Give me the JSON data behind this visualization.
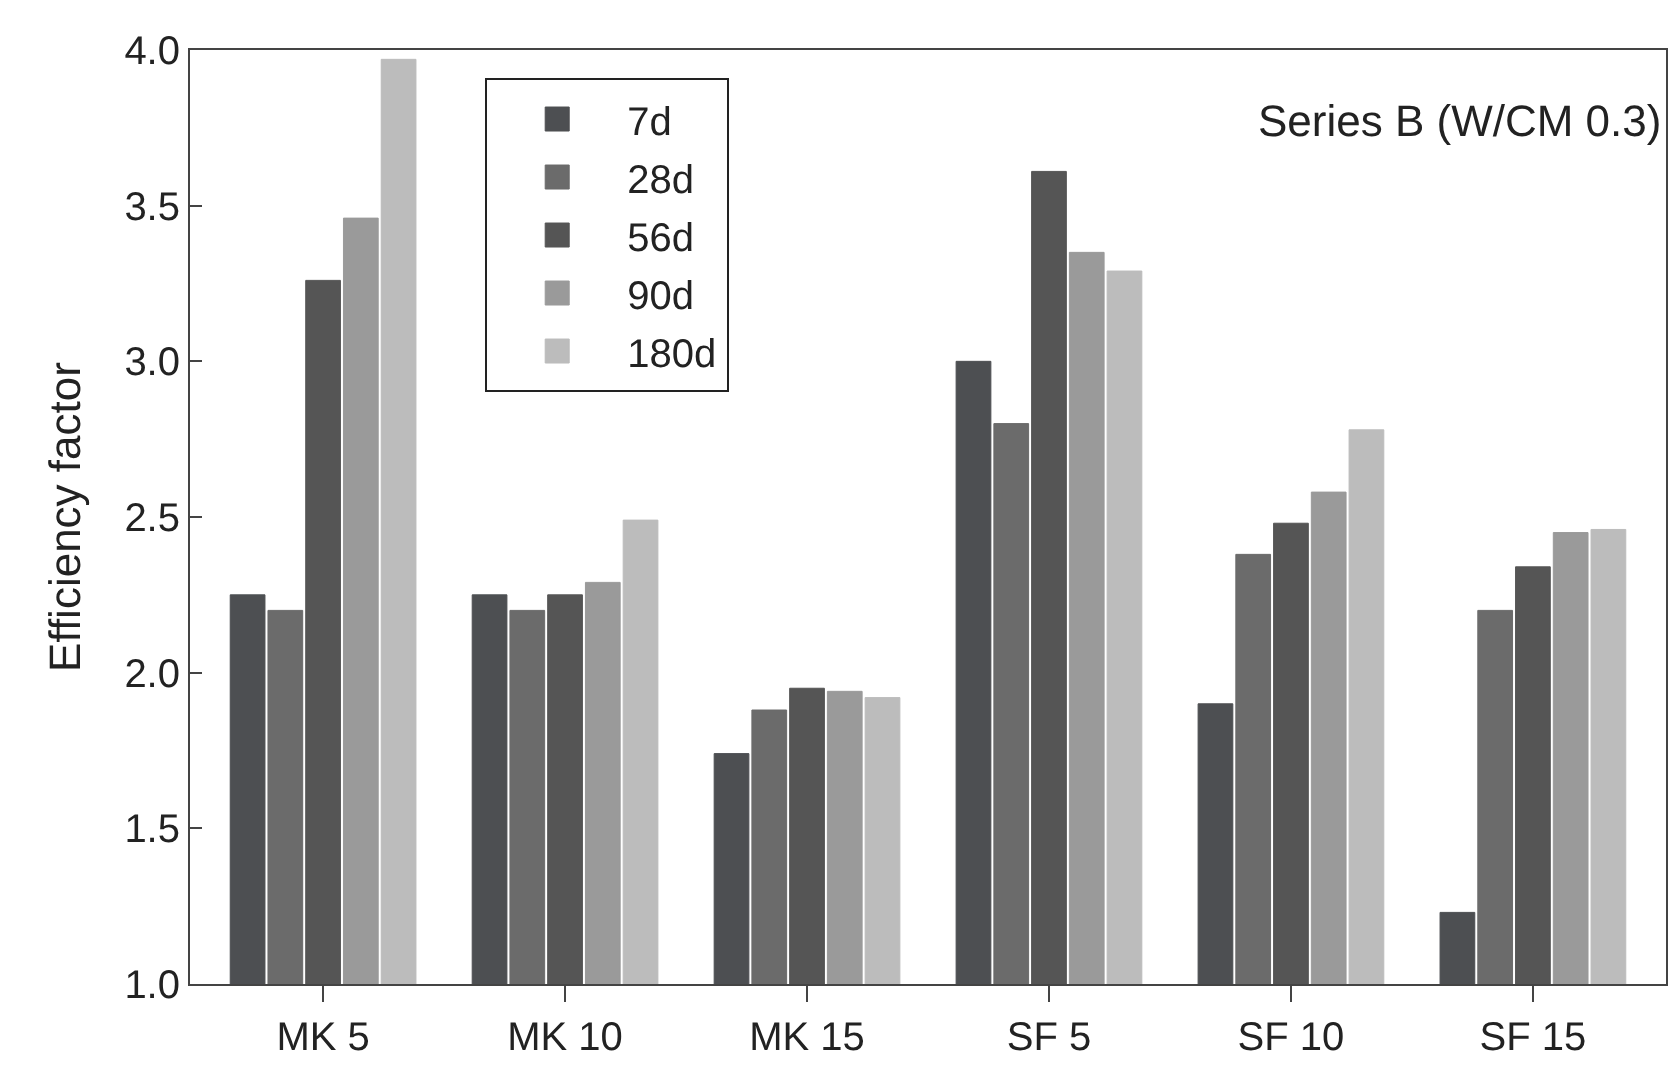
{
  "chart_data": {
    "type": "bar",
    "title": "Series B (W/CM 0.3)",
    "ylabel": "Efficiency factor",
    "categories": [
      "MK 5",
      "MK 10",
      "MK 15",
      "SF 5",
      "SF 10",
      "SF 15"
    ],
    "series": [
      {
        "name": "7d",
        "color": "#4d4f52",
        "values": [
          2.25,
          2.25,
          1.74,
          3.0,
          1.9,
          1.23
        ]
      },
      {
        "name": "28d",
        "color": "#6b6b6b",
        "values": [
          2.2,
          2.2,
          1.88,
          2.8,
          2.38,
          2.2
        ]
      },
      {
        "name": "56d",
        "color": "#555555",
        "values": [
          3.26,
          2.25,
          1.95,
          3.61,
          2.48,
          2.34
        ]
      },
      {
        "name": "90d",
        "color": "#9a9a9a",
        "values": [
          3.46,
          2.29,
          1.94,
          3.35,
          2.58,
          2.45
        ]
      },
      {
        "name": "180d",
        "color": "#bcbcbc",
        "values": [
          3.97,
          2.49,
          1.92,
          3.29,
          2.78,
          2.46
        ]
      }
    ],
    "ylim": [
      1.0,
      4.0
    ],
    "yticks": [
      {
        "value": 1.0,
        "label": "1.0"
      },
      1.5,
      {
        "value": 2.0,
        "label": "2.0"
      },
      2.5,
      {
        "value": 3.0,
        "label": "3.0"
      },
      3.5,
      {
        "value": 4.0,
        "label": "4.0"
      }
    ],
    "legend": "top left"
  }
}
